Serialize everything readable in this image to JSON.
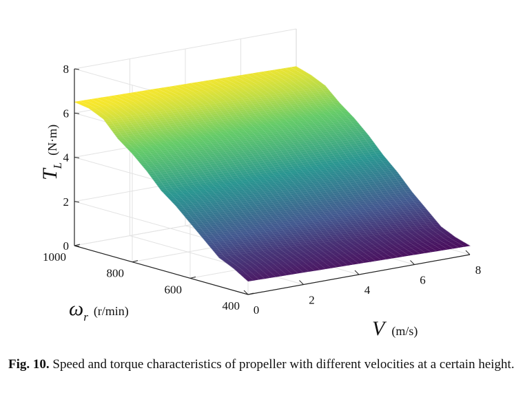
{
  "chart_data": {
    "type": "surface",
    "xlabel": "V",
    "xunit": "(m/s)",
    "xlim": [
      0,
      8
    ],
    "xticks": [
      0,
      2,
      4,
      6,
      8
    ],
    "ylabel": "ω",
    "ylabel_sub": "r",
    "yunit": "(r/min)",
    "ylim": [
      400,
      1000
    ],
    "yticks": [
      400,
      600,
      800,
      1000
    ],
    "zlabel": "T",
    "zlabel_sub": "L",
    "zunit": "(N·m)",
    "zlim": [
      0,
      8
    ],
    "zticks": [
      0,
      2,
      4,
      6,
      8
    ],
    "grid": true,
    "colormap": [
      "#440154",
      "#3b528b",
      "#21918c",
      "#5ec962",
      "#fde725"
    ],
    "surface_profile": {
      "omega": [
        400,
        450,
        500,
        550,
        600,
        650,
        700,
        750,
        800,
        850,
        900,
        950,
        1000
      ],
      "torque_at_v0": [
        0.6,
        1.0,
        1.3,
        1.9,
        2.5,
        3.1,
        3.6,
        4.3,
        4.9,
        5.4,
        6.1,
        6.4,
        6.5
      ],
      "torque_at_v8": [
        0.4,
        0.6,
        0.9,
        1.5,
        2.1,
        2.8,
        3.4,
        4.1,
        4.7,
        5.2,
        5.8,
        6.1,
        6.3
      ]
    }
  },
  "caption": {
    "label": "Fig. 10.",
    "text": "Speed and torque characteristics of propeller with different velocities at a certain height."
  }
}
